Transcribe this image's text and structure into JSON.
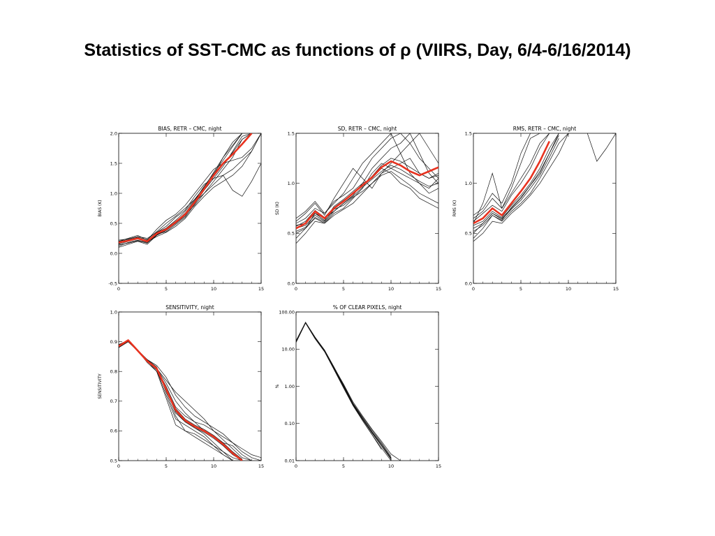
{
  "slide": {
    "title": "Statistics of SST-CMC as functions of ρ (VIIRS, Day, 6/4-6/16/2014)"
  },
  "colors": {
    "ensemble": "#111111",
    "mean": "#e8321f"
  },
  "chart_data": [
    {
      "type": "line",
      "title": "BIAS, RETR – CMC, night",
      "xlabel": "",
      "ylabel": "BIAS (K)",
      "xlim": [
        0,
        15
      ],
      "ylim": [
        -0.5,
        2.0
      ],
      "xticks": [
        "0",
        "5",
        "10",
        "15"
      ],
      "yticks": [
        "-0.5",
        "0.0",
        "0.5",
        "1.0",
        "1.5",
        "2.0"
      ],
      "x": [
        0,
        1,
        2,
        3,
        4,
        5,
        6,
        7,
        8,
        9,
        10,
        11,
        12,
        13,
        14,
        15
      ],
      "mean": [
        0.18,
        0.21,
        0.25,
        0.2,
        0.33,
        0.4,
        0.52,
        0.65,
        0.85,
        1.07,
        1.3,
        1.5,
        1.65,
        1.82,
        2.0,
        null
      ],
      "ensemble": [
        [
          0.15,
          0.2,
          0.25,
          0.2,
          0.35,
          0.42,
          0.55,
          0.7,
          0.9,
          1.1,
          1.35,
          1.6,
          1.8,
          2.0,
          null,
          null
        ],
        [
          0.12,
          0.18,
          0.22,
          0.18,
          0.3,
          0.38,
          0.5,
          0.62,
          0.85,
          1.0,
          1.2,
          1.4,
          1.6,
          1.9,
          2.0,
          null
        ],
        [
          0.2,
          0.25,
          0.3,
          0.22,
          0.4,
          0.55,
          0.65,
          0.8,
          1.0,
          1.2,
          1.4,
          1.5,
          1.55,
          1.6,
          1.75,
          2.0
        ],
        [
          0.22,
          0.24,
          0.28,
          0.25,
          0.35,
          0.45,
          0.6,
          0.72,
          0.95,
          1.15,
          1.25,
          1.3,
          1.05,
          0.95,
          1.2,
          1.5
        ],
        [
          0.1,
          0.15,
          0.2,
          0.15,
          0.3,
          0.4,
          0.5,
          0.65,
          0.8,
          1.0,
          1.15,
          1.3,
          1.4,
          1.55,
          1.7,
          2.0
        ],
        [
          0.16,
          0.22,
          0.26,
          0.21,
          0.32,
          0.36,
          0.48,
          0.6,
          0.82,
          1.05,
          1.3,
          1.6,
          1.85,
          2.0,
          null,
          null
        ],
        [
          0.18,
          0.2,
          0.24,
          0.19,
          0.28,
          0.35,
          0.45,
          0.58,
          0.78,
          0.95,
          1.1,
          1.2,
          1.3,
          1.45,
          1.7,
          2.0
        ],
        [
          0.2,
          0.23,
          0.27,
          0.23,
          0.36,
          0.5,
          0.62,
          0.75,
          0.9,
          1.05,
          1.25,
          1.45,
          1.7,
          1.95,
          2.0,
          null
        ],
        [
          0.14,
          0.17,
          0.21,
          0.17,
          0.31,
          0.39,
          0.5,
          0.64,
          0.86,
          1.08,
          1.28,
          1.48,
          1.68,
          1.9,
          2.0,
          null
        ],
        [
          0.17,
          0.21,
          0.25,
          0.2,
          0.33,
          0.41,
          0.53,
          0.67,
          0.88,
          1.12,
          1.33,
          1.55,
          1.78,
          2.0,
          null,
          null
        ]
      ]
    },
    {
      "type": "line",
      "title": "SD, RETR – CMC, night",
      "xlabel": "",
      "ylabel": "SD (K)",
      "xlim": [
        0,
        15
      ],
      "ylim": [
        0.0,
        1.5
      ],
      "xticks": [
        "0",
        "5",
        "10",
        "15"
      ],
      "yticks": [
        "0.0",
        "0.5",
        "1.0",
        "1.5"
      ],
      "x": [
        0,
        1,
        2,
        3,
        4,
        5,
        6,
        7,
        8,
        9,
        10,
        11,
        12,
        13,
        14,
        15
      ],
      "mean": [
        0.55,
        0.6,
        0.72,
        0.65,
        0.75,
        0.82,
        0.9,
        0.98,
        1.06,
        1.16,
        1.22,
        1.18,
        1.12,
        1.08,
        1.12,
        1.16
      ],
      "ensemble": [
        [
          0.6,
          0.65,
          0.75,
          0.7,
          0.8,
          0.9,
          1.05,
          1.2,
          1.3,
          1.4,
          1.5,
          1.3,
          1.1,
          1.0,
          0.95,
          1.05
        ],
        [
          0.5,
          0.55,
          0.65,
          0.6,
          0.7,
          0.75,
          0.85,
          0.95,
          1.1,
          1.2,
          1.15,
          1.1,
          1.05,
          1.0,
          0.9,
          0.95
        ],
        [
          0.45,
          0.55,
          0.7,
          0.65,
          0.72,
          0.8,
          0.88,
          1.0,
          1.15,
          1.25,
          1.35,
          1.4,
          1.5,
          1.3,
          1.1,
          1.0
        ],
        [
          0.62,
          0.7,
          0.8,
          0.68,
          0.85,
          1.0,
          1.15,
          1.05,
          0.95,
          1.1,
          1.2,
          1.3,
          1.4,
          1.5,
          1.35,
          1.2
        ],
        [
          0.55,
          0.58,
          0.68,
          0.62,
          0.74,
          0.78,
          0.86,
          0.92,
          1.0,
          1.08,
          1.12,
          1.05,
          0.98,
          0.9,
          0.85,
          0.8
        ],
        [
          0.58,
          0.6,
          0.7,
          0.63,
          0.77,
          0.84,
          0.92,
          1.0,
          1.05,
          1.15,
          1.1,
          1.0,
          0.95,
          0.85,
          0.8,
          0.75
        ],
        [
          0.4,
          0.5,
          0.62,
          0.6,
          0.68,
          0.74,
          0.8,
          0.9,
          1.0,
          1.1,
          1.15,
          1.2,
          1.25,
          1.1,
          1.05,
          1.1
        ],
        [
          0.65,
          0.72,
          0.82,
          0.7,
          0.82,
          0.88,
          0.95,
          1.1,
          1.25,
          1.35,
          1.45,
          1.5,
          1.4,
          1.25,
          1.15,
          1.05
        ],
        [
          0.52,
          0.56,
          0.66,
          0.61,
          0.72,
          0.8,
          0.87,
          0.96,
          1.04,
          1.12,
          1.18,
          1.14,
          1.08,
          1.02,
          0.97,
          1.0
        ],
        [
          0.57,
          0.62,
          0.73,
          0.66,
          0.76,
          0.83,
          0.9,
          0.97,
          1.07,
          1.18,
          1.25,
          1.22,
          1.16,
          1.1,
          1.05,
          1.08
        ]
      ]
    },
    {
      "type": "line",
      "title": "RMS, RETR – CMC, night",
      "xlabel": "",
      "ylabel": "RMS (K)",
      "xlim": [
        0,
        15
      ],
      "ylim": [
        0.0,
        1.5
      ],
      "xticks": [
        "0",
        "5",
        "10",
        "15"
      ],
      "yticks": [
        "0.0",
        "0.5",
        "1.0",
        "1.5"
      ],
      "x": [
        0,
        1,
        2,
        3,
        4,
        5,
        6,
        7,
        8,
        9,
        10,
        11,
        12,
        13,
        14,
        15
      ],
      "mean": [
        0.6,
        0.65,
        0.75,
        0.68,
        0.8,
        0.92,
        1.05,
        1.22,
        1.42,
        null,
        null,
        null,
        null,
        null,
        null,
        null
      ],
      "ensemble": [
        [
          0.62,
          0.7,
          0.78,
          0.72,
          0.88,
          1.0,
          1.15,
          1.35,
          1.5,
          null,
          null,
          null,
          null,
          null,
          null,
          null
        ],
        [
          0.5,
          0.6,
          0.7,
          0.65,
          0.75,
          0.85,
          0.98,
          1.12,
          1.3,
          1.5,
          null,
          null,
          null,
          null,
          null,
          null
        ],
        [
          0.45,
          0.55,
          0.68,
          0.62,
          0.72,
          0.8,
          0.9,
          1.05,
          1.22,
          1.4,
          1.5,
          null,
          null,
          null,
          null,
          null
        ],
        [
          0.65,
          0.72,
          0.85,
          0.75,
          0.9,
          1.05,
          1.2,
          1.4,
          1.5,
          null,
          null,
          null,
          null,
          null,
          null,
          null
        ],
        [
          0.58,
          0.62,
          0.72,
          0.66,
          0.78,
          0.88,
          1.0,
          1.15,
          1.35,
          1.5,
          null,
          null,
          null,
          null,
          null,
          null
        ],
        [
          0.55,
          0.6,
          0.7,
          0.64,
          0.74,
          0.83,
          0.95,
          1.08,
          1.26,
          1.45,
          null,
          null,
          1.5,
          1.22,
          1.35,
          1.5
        ],
        [
          0.42,
          0.5,
          0.62,
          0.6,
          0.7,
          0.78,
          0.88,
          1.0,
          1.15,
          1.3,
          1.5,
          null,
          null,
          null,
          null,
          null
        ],
        [
          0.6,
          0.8,
          1.1,
          0.75,
          0.95,
          1.2,
          1.45,
          1.5,
          null,
          null,
          null,
          null,
          null,
          null,
          null,
          null
        ],
        [
          0.68,
          0.75,
          0.9,
          0.8,
          1.0,
          1.3,
          1.5,
          null,
          null,
          null,
          null,
          null,
          null,
          null,
          null,
          null
        ],
        [
          0.52,
          0.58,
          0.68,
          0.63,
          0.76,
          0.86,
          0.98,
          1.1,
          1.3,
          1.48,
          null,
          null,
          null,
          null,
          null,
          null
        ]
      ]
    },
    {
      "type": "line",
      "title": "SENSITIVITY, night",
      "xlabel": "",
      "ylabel": "SENSITIVITY",
      "xlim": [
        0,
        15
      ],
      "ylim": [
        0.5,
        1.0
      ],
      "xticks": [
        "0",
        "5",
        "10",
        "15"
      ],
      "yticks": [
        "0.5",
        "0.6",
        "0.7",
        "0.8",
        "0.9",
        "1.0"
      ],
      "x": [
        0,
        1,
        2,
        3,
        4,
        5,
        6,
        7,
        8,
        9,
        10,
        11,
        12,
        13,
        14,
        15
      ],
      "mean": [
        0.885,
        0.905,
        0.87,
        0.835,
        0.81,
        0.74,
        0.67,
        0.635,
        0.615,
        0.6,
        0.58,
        0.555,
        0.525,
        0.5,
        null,
        null
      ],
      "ensemble": [
        [
          0.89,
          0.905,
          0.87,
          0.84,
          0.82,
          0.78,
          0.72,
          0.68,
          0.65,
          0.63,
          0.61,
          0.59,
          0.56,
          0.53,
          0.51,
          0.5
        ],
        [
          0.88,
          0.9,
          0.87,
          0.83,
          0.8,
          0.74,
          0.66,
          0.63,
          0.61,
          0.59,
          0.56,
          0.53,
          0.5,
          null,
          null,
          null
        ],
        [
          0.89,
          0.905,
          0.87,
          0.84,
          0.81,
          0.76,
          0.7,
          0.66,
          0.63,
          0.6,
          0.58,
          0.56,
          0.55,
          0.52,
          0.5,
          null
        ],
        [
          0.885,
          0.9,
          0.868,
          0.835,
          0.805,
          0.72,
          0.64,
          0.62,
          0.6,
          0.58,
          0.55,
          0.52,
          0.5,
          null,
          null,
          null
        ],
        [
          0.88,
          0.9,
          0.87,
          0.835,
          0.81,
          0.77,
          0.73,
          0.7,
          0.67,
          0.64,
          0.6,
          0.57,
          0.54,
          0.51,
          0.5,
          null
        ],
        [
          0.89,
          0.905,
          0.872,
          0.84,
          0.815,
          0.73,
          0.65,
          0.6,
          0.58,
          0.56,
          0.54,
          0.52,
          0.5,
          null,
          null,
          null
        ],
        [
          0.885,
          0.9,
          0.87,
          0.838,
          0.808,
          0.75,
          0.68,
          0.65,
          0.63,
          0.62,
          0.6,
          0.58,
          0.56,
          0.54,
          0.52,
          0.51
        ],
        [
          0.88,
          0.905,
          0.87,
          0.835,
          0.8,
          0.71,
          0.62,
          0.6,
          0.59,
          0.57,
          0.55,
          0.53,
          0.51,
          0.5,
          null,
          null
        ],
        [
          0.89,
          0.9,
          0.869,
          0.836,
          0.812,
          0.745,
          0.675,
          0.64,
          0.62,
          0.605,
          0.585,
          0.56,
          0.53,
          0.505,
          null,
          null
        ],
        [
          0.886,
          0.902,
          0.87,
          0.837,
          0.809,
          0.735,
          0.665,
          0.63,
          0.61,
          0.595,
          0.575,
          0.55,
          0.52,
          0.5,
          null,
          null
        ]
      ]
    },
    {
      "type": "line",
      "title": "% OF CLEAR PIXELS, night",
      "xlabel": "",
      "ylabel": "%",
      "yscale": "log",
      "xlim": [
        0,
        15
      ],
      "ylim": [
        0.01,
        100
      ],
      "xticks": [
        "0",
        "5",
        "10",
        "15"
      ],
      "yticks": [
        "0.01",
        "0.10",
        "1.00",
        "10.00",
        "100.00"
      ],
      "x": [
        0,
        1,
        2,
        3,
        4,
        5,
        6,
        7,
        8,
        9,
        10,
        11,
        12,
        13,
        14,
        15
      ],
      "mean": [],
      "ensemble": [
        [
          16,
          52,
          20,
          9,
          3,
          1,
          0.32,
          0.13,
          0.055,
          0.025,
          0.011,
          null,
          null,
          null,
          null,
          null
        ],
        [
          16,
          52,
          21,
          9.5,
          3.3,
          1.1,
          0.35,
          0.15,
          0.065,
          0.03,
          0.013,
          null,
          null,
          null,
          null,
          null
        ],
        [
          15,
          50,
          19,
          8.5,
          2.8,
          0.9,
          0.3,
          0.12,
          0.05,
          0.022,
          0.01,
          null,
          null,
          null,
          null,
          null
        ],
        [
          17,
          53,
          21,
          9.2,
          3.1,
          1.05,
          0.34,
          0.14,
          0.06,
          0.028,
          0.012,
          null,
          null,
          null,
          null,
          null
        ],
        [
          16,
          51,
          20,
          8.8,
          2.9,
          0.95,
          0.31,
          0.12,
          0.05,
          0.02,
          null,
          null,
          null,
          null,
          null,
          null
        ],
        [
          16,
          52,
          20.5,
          9.1,
          3.05,
          1.02,
          0.33,
          0.135,
          0.058,
          0.026,
          0.0115,
          null,
          null,
          null,
          null,
          null
        ],
        [
          15.5,
          51.5,
          20,
          9,
          3.2,
          1.15,
          0.38,
          0.16,
          0.07,
          0.033,
          0.015,
          0.01,
          null,
          null,
          null,
          null
        ],
        [
          16,
          52,
          20,
          8.9,
          2.95,
          0.98,
          0.32,
          0.13,
          0.056,
          0.025,
          0.011,
          null,
          null,
          null,
          null,
          null
        ]
      ]
    }
  ]
}
